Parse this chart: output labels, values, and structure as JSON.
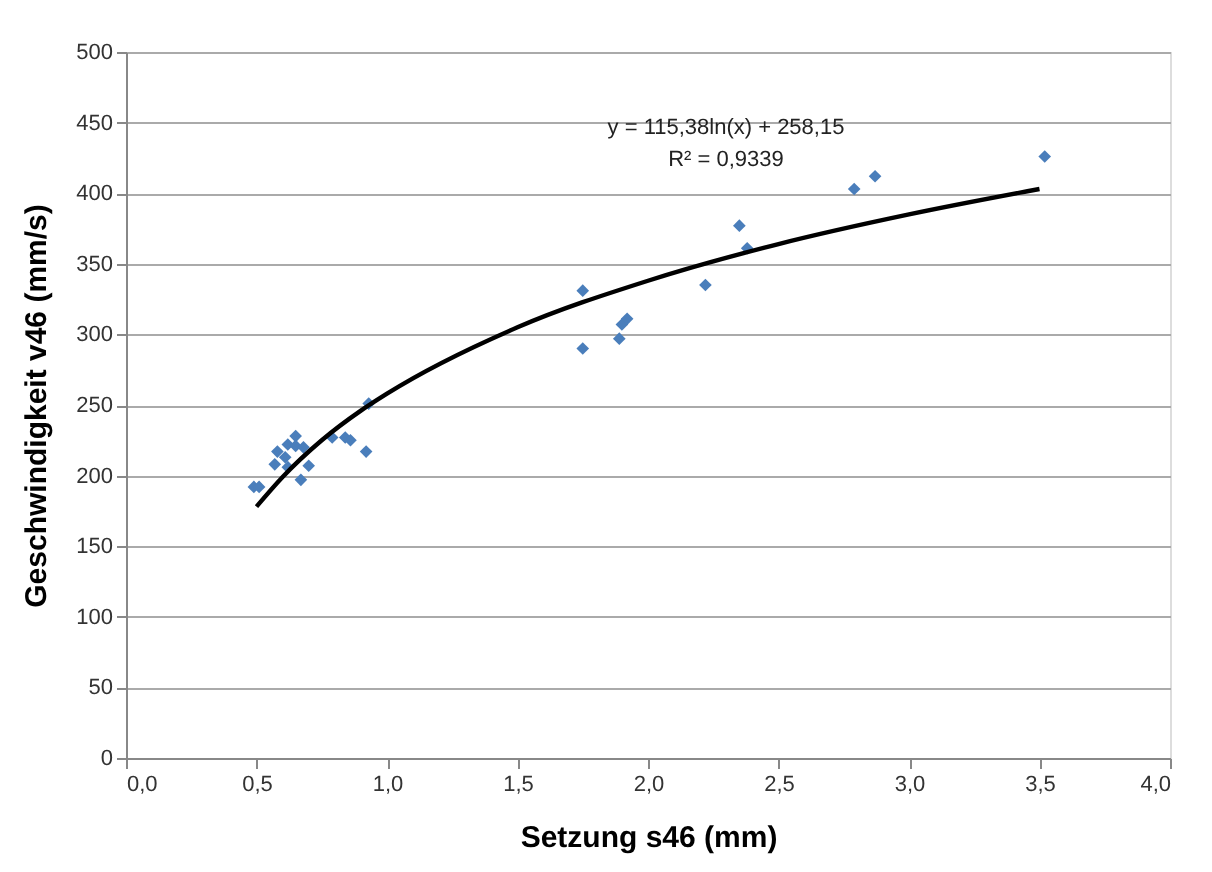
{
  "chart_data": {
    "type": "scatter",
    "xlabel": "Setzung s46 (mm)",
    "ylabel": "Geschwindigkeit  v46 (mm/s)",
    "xlim": [
      0,
      4
    ],
    "ylim": [
      0,
      500
    ],
    "xticks": [
      {
        "value": 0,
        "label": "0,0"
      },
      {
        "value": 0.5,
        "label": "0,5"
      },
      {
        "value": 1,
        "label": "1,0"
      },
      {
        "value": 1.5,
        "label": "1,5"
      },
      {
        "value": 2,
        "label": "2,0"
      },
      {
        "value": 2.5,
        "label": "2,5"
      },
      {
        "value": 3,
        "label": "3,0"
      },
      {
        "value": 3.5,
        "label": "3,5"
      },
      {
        "value": 4,
        "label": "4,0"
      }
    ],
    "yticks": [
      0,
      50,
      100,
      150,
      200,
      250,
      300,
      350,
      400,
      450,
      500
    ],
    "grid": "y",
    "legend": false,
    "marker": "diamond",
    "annotations": [
      "y = 115,38ln(x) + 258,15",
      "R² = 0,9339"
    ],
    "series": [
      {
        "type": "scatter",
        "color": "#4a7ebb",
        "x": [
          0.49,
          0.51,
          0.57,
          0.58,
          0.61,
          0.62,
          0.62,
          0.65,
          0.65,
          0.68,
          0.67,
          0.7,
          0.79,
          0.84,
          0.86,
          0.93,
          0.92,
          1.75,
          1.75,
          1.89,
          1.9,
          1.92,
          2.22,
          2.35,
          2.38,
          2.79,
          2.87,
          3.52
        ],
        "values": [
          192,
          192,
          208,
          217,
          213,
          222,
          206,
          228,
          221,
          220,
          197,
          207,
          227,
          227,
          225,
          251,
          217,
          331,
          290,
          297,
          307,
          311,
          335,
          377,
          361,
          403,
          412,
          426
        ]
      },
      {
        "type": "line",
        "color": "#000000",
        "marker": "none",
        "line_style": "solid",
        "x": [
          0.5,
          0.6,
          0.75,
          0.9,
          1,
          1.5,
          2,
          2.5,
          3,
          3.5
        ],
        "values": [
          178,
          199,
          225,
          246,
          258,
          305,
          338,
          364,
          385,
          403
        ]
      }
    ]
  }
}
